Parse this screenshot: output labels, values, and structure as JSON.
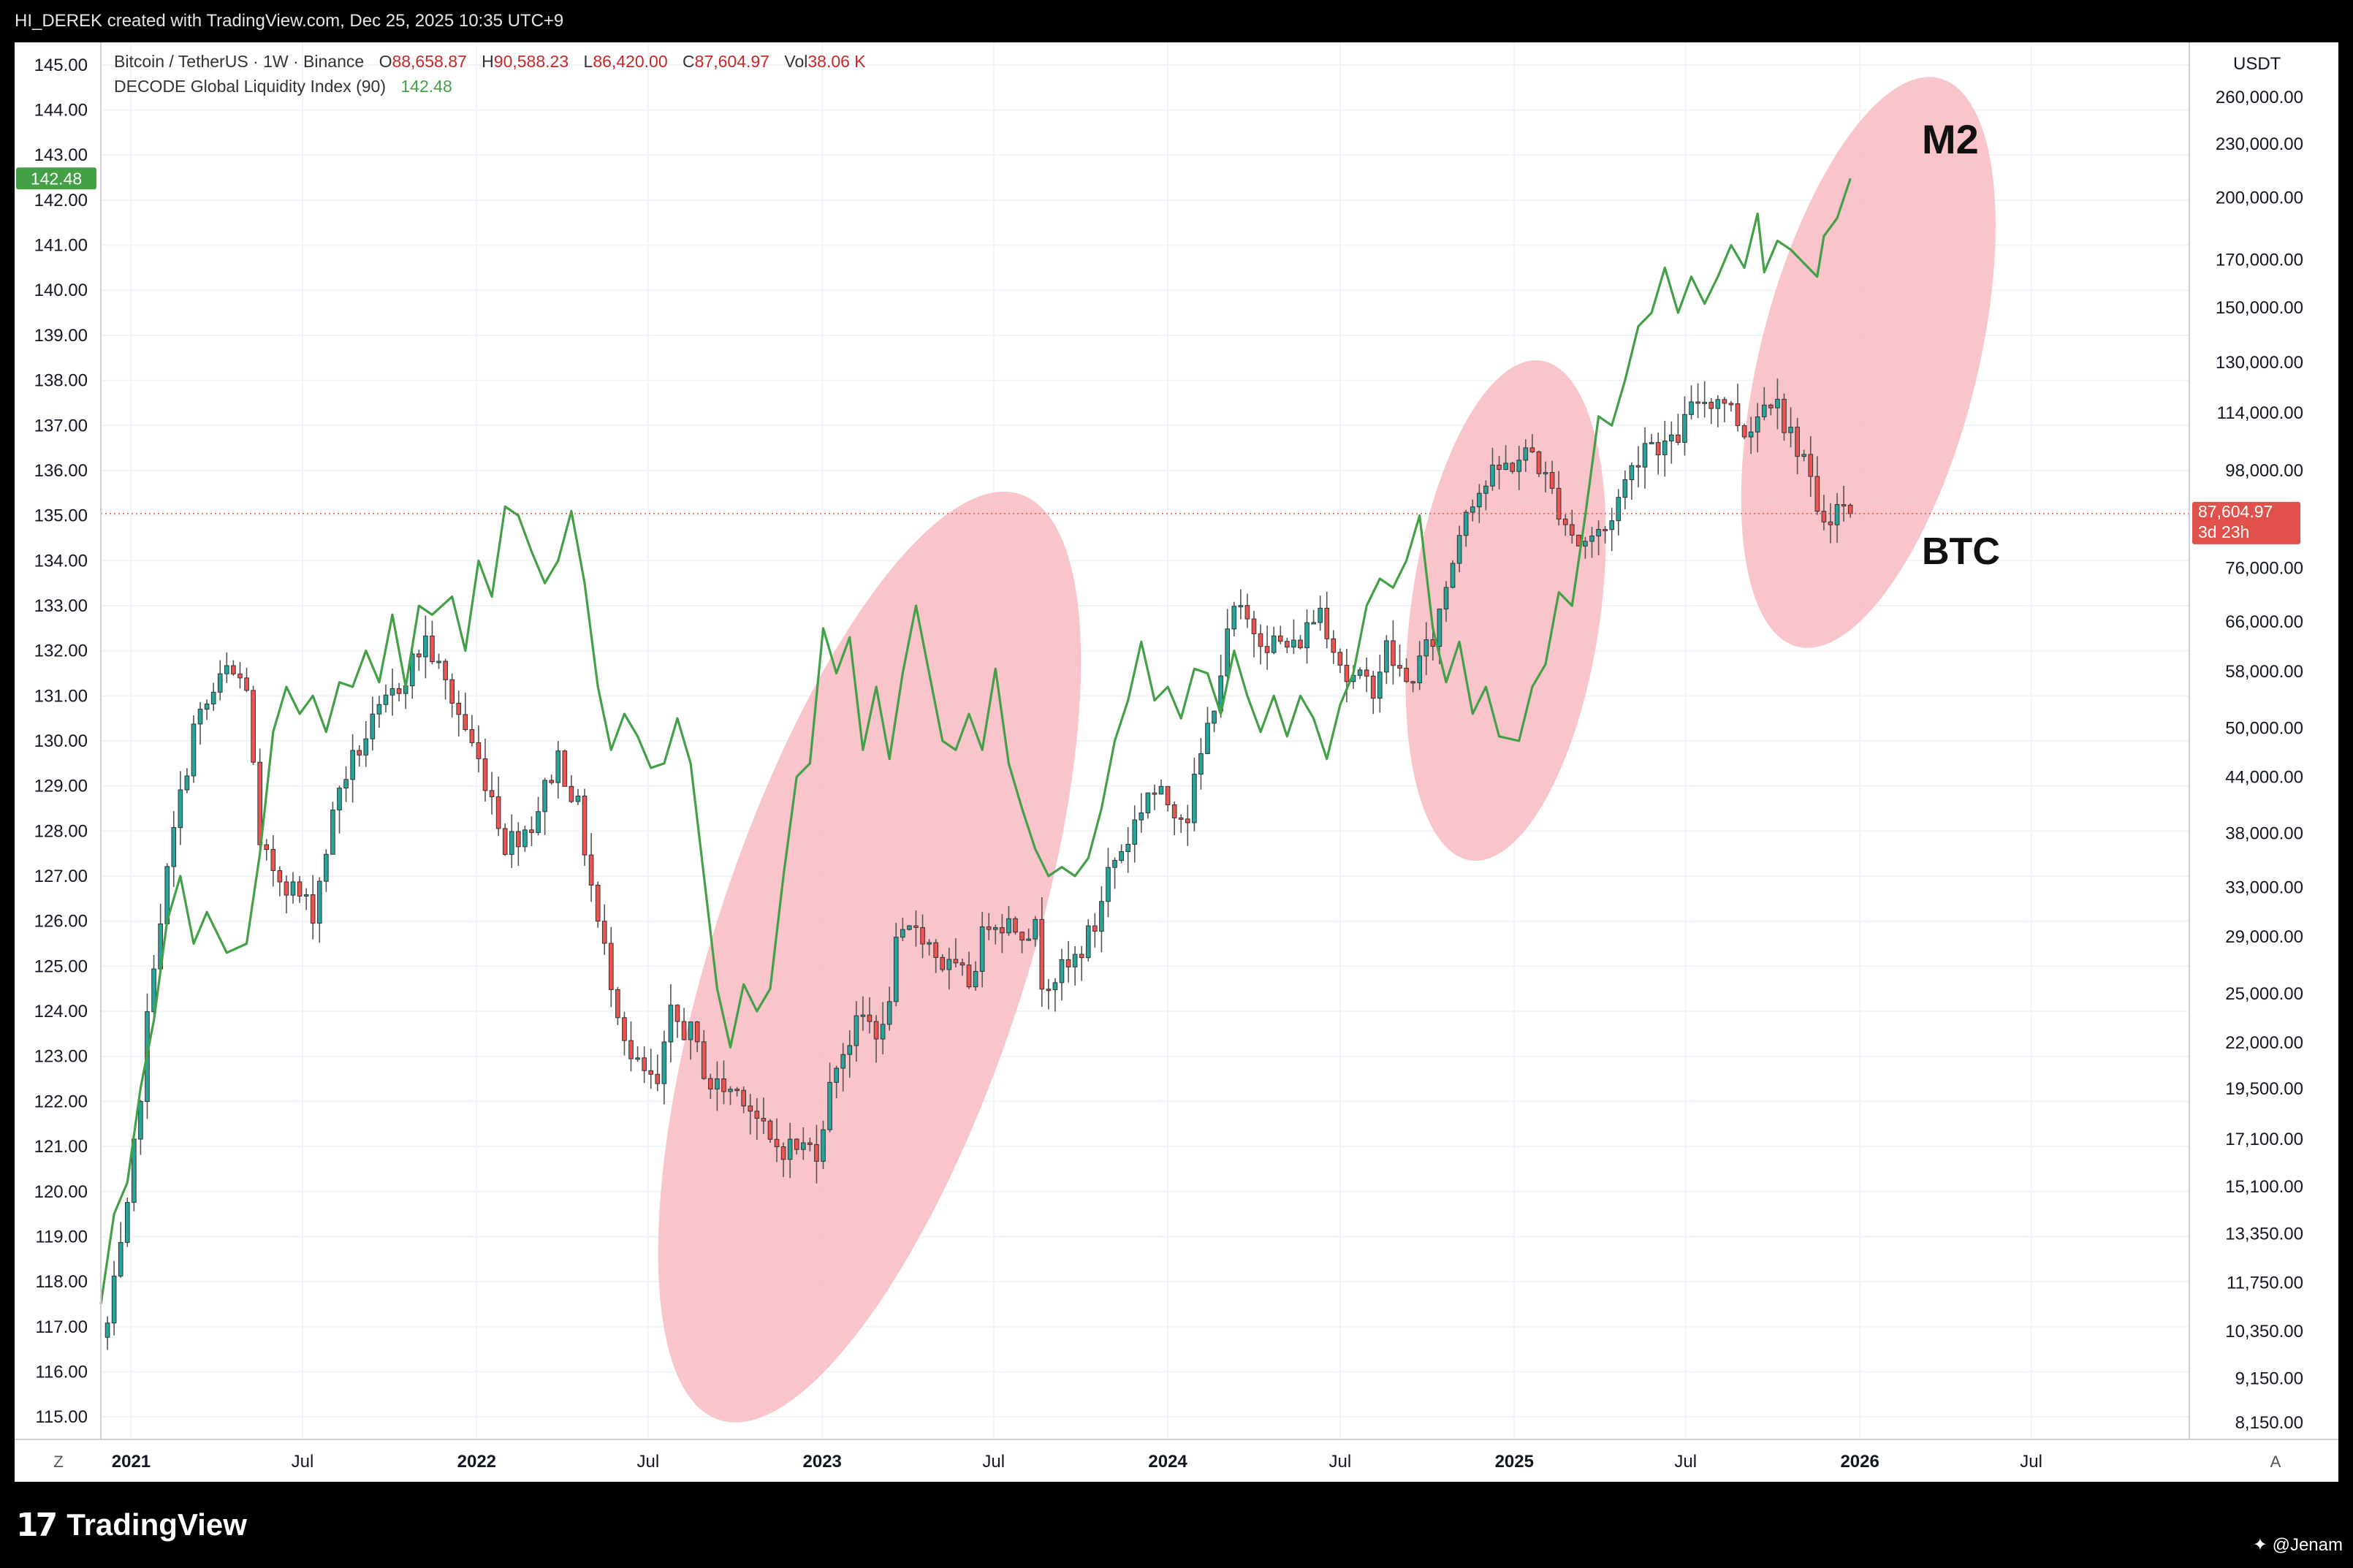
{
  "header": {
    "caption": "HI_DEREK created with TradingView.com, Dec 25, 2025 10:35 UTC+9"
  },
  "legend": {
    "symbol": "Bitcoin / TetherUS · 1W · Binance",
    "o_label": "O",
    "o_value": "88,658.87",
    "h_label": "H",
    "h_value": "90,588.23",
    "l_label": "L",
    "l_value": "86,420.00",
    "c_label": "C",
    "c_value": "87,604.97",
    "vol_label": "Vol",
    "vol_value": "38.06 K",
    "indicator": "DECODE Global Liquidity Index (90)",
    "indicator_value": "142.48"
  },
  "right_axis": {
    "unit": "USDT",
    "ticks": [
      "260,000.00",
      "230,000.00",
      "200,000.00",
      "170,000.00",
      "150,000.00",
      "130,000.00",
      "114,000.00",
      "98,000.00",
      "76,000.00",
      "66,000.00",
      "58,000.00",
      "50,000.00",
      "44,000.00",
      "38,000.00",
      "33,000.00",
      "29,000.00",
      "25,000.00",
      "22,000.00",
      "19,500.00",
      "17,100.00",
      "15,100.00",
      "13,350.00",
      "11,750.00",
      "10,350.00",
      "9,150.00",
      "8,150.00"
    ],
    "price_label": "87,604.97",
    "countdown": "3d 23h"
  },
  "left_axis": {
    "ticks": [
      "145.00",
      "144.00",
      "143.00",
      "142.00",
      "141.00",
      "140.00",
      "139.00",
      "138.00",
      "137.00",
      "136.00",
      "135.00",
      "134.00",
      "133.00",
      "132.00",
      "131.00",
      "130.00",
      "129.00",
      "128.00",
      "127.00",
      "126.00",
      "125.00",
      "124.00",
      "123.00",
      "122.00",
      "121.00",
      "120.00",
      "119.00",
      "118.00",
      "117.00",
      "116.00",
      "115.00"
    ],
    "current_label": "142.48"
  },
  "time_axis": {
    "labels": [
      "2021",
      "Jul",
      "2022",
      "Jul",
      "2023",
      "Jul",
      "2024",
      "Jul",
      "2025",
      "Jul",
      "2026",
      "Jul"
    ],
    "left_corner": "Z",
    "right_corner": "A"
  },
  "annotations": {
    "m2": "M2",
    "btc": "BTC"
  },
  "footer": {
    "logo_mark": "17",
    "logo_text": "TradingView",
    "user": "@Jenam"
  },
  "colors": {
    "up": "#26a69a",
    "down": "#ef5350",
    "wick": "#555555",
    "liquidity_line": "#43a047",
    "highlight": "#f7b6be",
    "last_price_bg": "#e0514c",
    "indicator_badge_bg": "#43a047"
  },
  "chart_data": {
    "type": "candlestick+line",
    "timeframe": "1W",
    "x_range": [
      "2020-11-30",
      "2026-12-15"
    ],
    "btc_scale": "log",
    "btc_ylim": [
      7800,
      300000
    ],
    "liquidity_ylim": [
      114.5,
      145.5
    ],
    "btc_series": {
      "name": "Bitcoin / TetherUS",
      "anchors": [
        [
          "2020-12-07",
          10500
        ],
        [
          "2020-12-28",
          14000
        ],
        [
          "2021-01-11",
          19500
        ],
        [
          "2021-01-25",
          27500
        ],
        [
          "2021-02-15",
          38000
        ],
        [
          "2021-03-08",
          50000
        ],
        [
          "2021-04-12",
          58000
        ],
        [
          "2021-05-03",
          56000
        ],
        [
          "2021-05-17",
          36000
        ],
        [
          "2021-06-14",
          33500
        ],
        [
          "2021-07-12",
          31000
        ],
        [
          "2021-08-09",
          43000
        ],
        [
          "2021-09-06",
          49000
        ],
        [
          "2021-10-11",
          56000
        ],
        [
          "2021-11-08",
          63000
        ],
        [
          "2021-11-29",
          56000
        ],
        [
          "2021-12-20",
          50000
        ],
        [
          "2022-01-17",
          42000
        ],
        [
          "2022-01-31",
          37000
        ],
        [
          "2022-02-28",
          39000
        ],
        [
          "2022-03-28",
          46500
        ],
        [
          "2022-04-18",
          40500
        ],
        [
          "2022-05-09",
          30000
        ],
        [
          "2022-06-13",
          21000
        ],
        [
          "2022-07-11",
          19500
        ],
        [
          "2022-07-25",
          23500
        ],
        [
          "2022-08-15",
          22500
        ],
        [
          "2022-09-05",
          19700
        ],
        [
          "2022-10-10",
          19300
        ],
        [
          "2022-11-07",
          16800
        ],
        [
          "2022-12-26",
          16700
        ],
        [
          "2023-01-16",
          21000
        ],
        [
          "2023-02-13",
          23500
        ],
        [
          "2023-03-06",
          22500
        ],
        [
          "2023-03-20",
          28000
        ],
        [
          "2023-04-10",
          30000
        ],
        [
          "2023-05-08",
          27000
        ],
        [
          "2023-06-05",
          25800
        ],
        [
          "2023-06-26",
          30500
        ],
        [
          "2023-08-14",
          29500
        ],
        [
          "2023-08-21",
          26000
        ],
        [
          "2023-09-18",
          26600
        ],
        [
          "2023-10-16",
          29800
        ],
        [
          "2023-10-30",
          34500
        ],
        [
          "2023-11-20",
          37500
        ],
        [
          "2023-12-11",
          42500
        ],
        [
          "2024-01-22",
          40000
        ],
        [
          "2024-02-12",
          50000
        ],
        [
          "2024-03-11",
          68000
        ],
        [
          "2024-04-15",
          63000
        ],
        [
          "2024-05-13",
          61500
        ],
        [
          "2024-06-10",
          68500
        ],
        [
          "2024-07-08",
          57000
        ],
        [
          "2024-08-05",
          56000
        ],
        [
          "2024-08-19",
          61500
        ],
        [
          "2024-09-09",
          56000
        ],
        [
          "2024-10-07",
          63000
        ],
        [
          "2024-11-11",
          90000
        ],
        [
          "2024-12-16",
          98000
        ],
        [
          "2025-01-20",
          103000
        ],
        [
          "2025-02-24",
          86000
        ],
        [
          "2025-03-10",
          81000
        ],
        [
          "2025-04-07",
          84000
        ],
        [
          "2025-04-28",
          95000
        ],
        [
          "2025-05-19",
          106000
        ],
        [
          "2025-06-16",
          104500
        ],
        [
          "2025-07-14",
          118000
        ],
        [
          "2025-08-11",
          118500
        ],
        [
          "2025-09-01",
          108500
        ],
        [
          "2025-10-06",
          122000
        ],
        [
          "2025-10-13",
          110500
        ],
        [
          "2025-11-03",
          102000
        ],
        [
          "2025-11-17",
          86000
        ],
        [
          "2025-12-08",
          89000
        ],
        [
          "2025-12-22",
          87604.97
        ]
      ]
    },
    "liquidity_series": {
      "name": "DECODE Global Liquidity Index (90)",
      "points": [
        [
          "2020-11-30",
          117.5
        ],
        [
          "2020-12-14",
          119.5
        ],
        [
          "2020-12-28",
          120.2
        ],
        [
          "2021-01-11",
          122.3
        ],
        [
          "2021-01-25",
          123.8
        ],
        [
          "2021-02-08",
          126.0
        ],
        [
          "2021-02-22",
          127.0
        ],
        [
          "2021-03-08",
          125.5
        ],
        [
          "2021-03-22",
          126.2
        ],
        [
          "2021-04-12",
          125.3
        ],
        [
          "2021-05-03",
          125.5
        ],
        [
          "2021-05-17",
          127.5
        ],
        [
          "2021-05-31",
          130.2
        ],
        [
          "2021-06-14",
          131.2
        ],
        [
          "2021-06-28",
          130.6
        ],
        [
          "2021-07-12",
          131.0
        ],
        [
          "2021-07-26",
          130.2
        ],
        [
          "2021-08-09",
          131.3
        ],
        [
          "2021-08-23",
          131.2
        ],
        [
          "2021-09-06",
          132.0
        ],
        [
          "2021-09-20",
          131.3
        ],
        [
          "2021-10-04",
          132.8
        ],
        [
          "2021-10-18",
          131.2
        ],
        [
          "2021-11-01",
          133.0
        ],
        [
          "2021-11-15",
          132.8
        ],
        [
          "2021-12-06",
          133.2
        ],
        [
          "2021-12-20",
          132.0
        ],
        [
          "2022-01-03",
          134.0
        ],
        [
          "2022-01-17",
          133.2
        ],
        [
          "2022-01-31",
          135.2
        ],
        [
          "2022-02-14",
          135.0
        ],
        [
          "2022-02-28",
          134.2
        ],
        [
          "2022-03-14",
          133.5
        ],
        [
          "2022-03-28",
          134.0
        ],
        [
          "2022-04-11",
          135.1
        ],
        [
          "2022-04-25",
          133.5
        ],
        [
          "2022-05-09",
          131.2
        ],
        [
          "2022-05-23",
          129.8
        ],
        [
          "2022-06-06",
          130.6
        ],
        [
          "2022-06-20",
          130.1
        ],
        [
          "2022-07-04",
          129.4
        ],
        [
          "2022-07-18",
          129.5
        ],
        [
          "2022-08-01",
          130.5
        ],
        [
          "2022-08-15",
          129.5
        ],
        [
          "2022-08-29",
          127.0
        ],
        [
          "2022-09-12",
          124.5
        ],
        [
          "2022-09-26",
          123.2
        ],
        [
          "2022-10-10",
          124.6
        ],
        [
          "2022-10-24",
          124.0
        ],
        [
          "2022-11-07",
          124.5
        ],
        [
          "2022-11-21",
          127.0
        ],
        [
          "2022-12-05",
          129.2
        ],
        [
          "2022-12-19",
          129.5
        ],
        [
          "2023-01-02",
          132.5
        ],
        [
          "2023-01-16",
          131.5
        ],
        [
          "2023-01-30",
          132.3
        ],
        [
          "2023-02-13",
          129.8
        ],
        [
          "2023-02-27",
          131.2
        ],
        [
          "2023-03-13",
          129.6
        ],
        [
          "2023-03-27",
          131.5
        ],
        [
          "2023-04-10",
          133.0
        ],
        [
          "2023-04-24",
          131.5
        ],
        [
          "2023-05-08",
          130.0
        ],
        [
          "2023-05-22",
          129.8
        ],
        [
          "2023-06-05",
          130.6
        ],
        [
          "2023-06-19",
          129.8
        ],
        [
          "2023-07-03",
          131.6
        ],
        [
          "2023-07-17",
          129.5
        ],
        [
          "2023-07-31",
          128.5
        ],
        [
          "2023-08-14",
          127.6
        ],
        [
          "2023-08-28",
          127.0
        ],
        [
          "2023-09-11",
          127.2
        ],
        [
          "2023-09-25",
          127.0
        ],
        [
          "2023-10-09",
          127.4
        ],
        [
          "2023-10-23",
          128.5
        ],
        [
          "2023-11-06",
          130.0
        ],
        [
          "2023-11-20",
          130.9
        ],
        [
          "2023-12-04",
          132.2
        ],
        [
          "2023-12-18",
          130.9
        ],
        [
          "2024-01-01",
          131.2
        ],
        [
          "2024-01-15",
          130.5
        ],
        [
          "2024-01-29",
          131.6
        ],
        [
          "2024-02-12",
          131.5
        ],
        [
          "2024-02-26",
          130.6
        ],
        [
          "2024-03-11",
          132.0
        ],
        [
          "2024-03-25",
          131.0
        ],
        [
          "2024-04-08",
          130.2
        ],
        [
          "2024-04-22",
          131.0
        ],
        [
          "2024-05-06",
          130.1
        ],
        [
          "2024-05-20",
          131.0
        ],
        [
          "2024-06-03",
          130.5
        ],
        [
          "2024-06-17",
          129.6
        ],
        [
          "2024-07-01",
          130.8
        ],
        [
          "2024-07-15",
          131.5
        ],
        [
          "2024-07-29",
          133.0
        ],
        [
          "2024-08-12",
          133.6
        ],
        [
          "2024-08-26",
          133.4
        ],
        [
          "2024-09-09",
          134.0
        ],
        [
          "2024-09-23",
          135.0
        ],
        [
          "2024-10-07",
          132.5
        ],
        [
          "2024-10-21",
          131.3
        ],
        [
          "2024-11-04",
          132.2
        ],
        [
          "2024-11-18",
          130.6
        ],
        [
          "2024-12-02",
          131.2
        ],
        [
          "2024-12-16",
          130.1
        ],
        [
          "2025-01-06",
          130.0
        ],
        [
          "2025-01-20",
          131.2
        ],
        [
          "2025-02-03",
          131.7
        ],
        [
          "2025-02-17",
          133.3
        ],
        [
          "2025-03-03",
          133.0
        ],
        [
          "2025-03-17",
          135.0
        ],
        [
          "2025-03-31",
          137.2
        ],
        [
          "2025-04-14",
          137.0
        ],
        [
          "2025-04-28",
          138.0
        ],
        [
          "2025-05-12",
          139.2
        ],
        [
          "2025-05-26",
          139.5
        ],
        [
          "2025-06-09",
          140.5
        ],
        [
          "2025-06-23",
          139.5
        ],
        [
          "2025-07-07",
          140.3
        ],
        [
          "2025-07-21",
          139.7
        ],
        [
          "2025-08-04",
          140.3
        ],
        [
          "2025-08-18",
          141.0
        ],
        [
          "2025-09-01",
          140.5
        ],
        [
          "2025-09-15",
          141.7
        ],
        [
          "2025-09-22",
          140.4
        ],
        [
          "2025-10-06",
          141.1
        ],
        [
          "2025-10-20",
          140.9
        ],
        [
          "2025-11-03",
          140.6
        ],
        [
          "2025-11-17",
          140.3
        ],
        [
          "2025-11-24",
          141.2
        ],
        [
          "2025-12-08",
          141.6
        ],
        [
          "2025-12-22",
          142.48
        ]
      ]
    },
    "highlights": [
      {
        "center_date": "2023-02-20",
        "center_btc": 27500,
        "rx_days": 165,
        "ry_liq": 10.8,
        "rotate": 18
      },
      {
        "center_date": "2024-12-23",
        "center_btc": 68000,
        "rx_days": 100,
        "ry_liq": 5.6,
        "rotate": 8
      },
      {
        "center_date": "2026-01-10",
        "center_btc": 130000,
        "rx_days": 115,
        "ry_liq": 6.5,
        "rotate": 14
      }
    ]
  }
}
